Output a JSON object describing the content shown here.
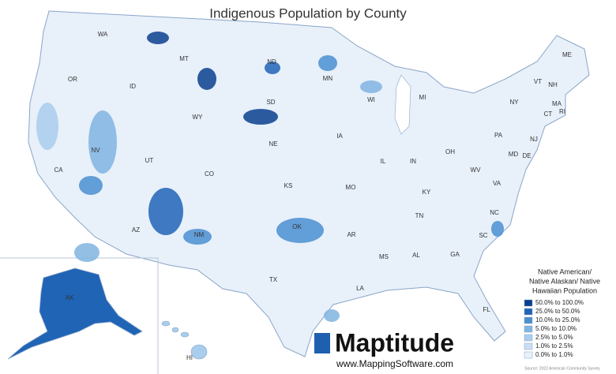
{
  "title": "Indigenous Population by County",
  "state_labels": [
    "WA",
    "MT",
    "ND",
    "MN",
    "OR",
    "ID",
    "SD",
    "WI",
    "MI",
    "WY",
    "NY",
    "VT",
    "NH",
    "ME",
    "MA",
    "CT",
    "RI",
    "NV",
    "NE",
    "IA",
    "PA",
    "NJ",
    "OH",
    "IN",
    "IL",
    "UT",
    "CO",
    "CA",
    "MD",
    "DE",
    "WV",
    "VA",
    "KS",
    "MO",
    "KY",
    "NC",
    "TN",
    "AR",
    "OK",
    "AZ",
    "NM",
    "SC",
    "MS",
    "AL",
    "GA",
    "TX",
    "LA",
    "FL",
    "AK",
    "HI"
  ],
  "legend": {
    "title_lines": [
      "Native American/",
      "Native Alaskan/ Native",
      "Hawaiian Population"
    ],
    "items": [
      {
        "label": "50.0% to 100.0%",
        "color": "#0b3f8e"
      },
      {
        "label": "25.0% to 50.0%",
        "color": "#2064b6"
      },
      {
        "label": "10.0% to 25.0%",
        "color": "#4a8fd0"
      },
      {
        "label": "5.0% to 10.0%",
        "color": "#80b4e1"
      },
      {
        "label": "2.5% to 5.0%",
        "color": "#a9cdec"
      },
      {
        "label": "1.0% to 2.5%",
        "color": "#c9def3"
      },
      {
        "label": "0.0% to 1.0%",
        "color": "#e8f0fa"
      }
    ]
  },
  "brand": {
    "name": "Maptitude",
    "url": "www.MappingSoftware.com",
    "source": "Source: 2022 American Community Survey"
  }
}
